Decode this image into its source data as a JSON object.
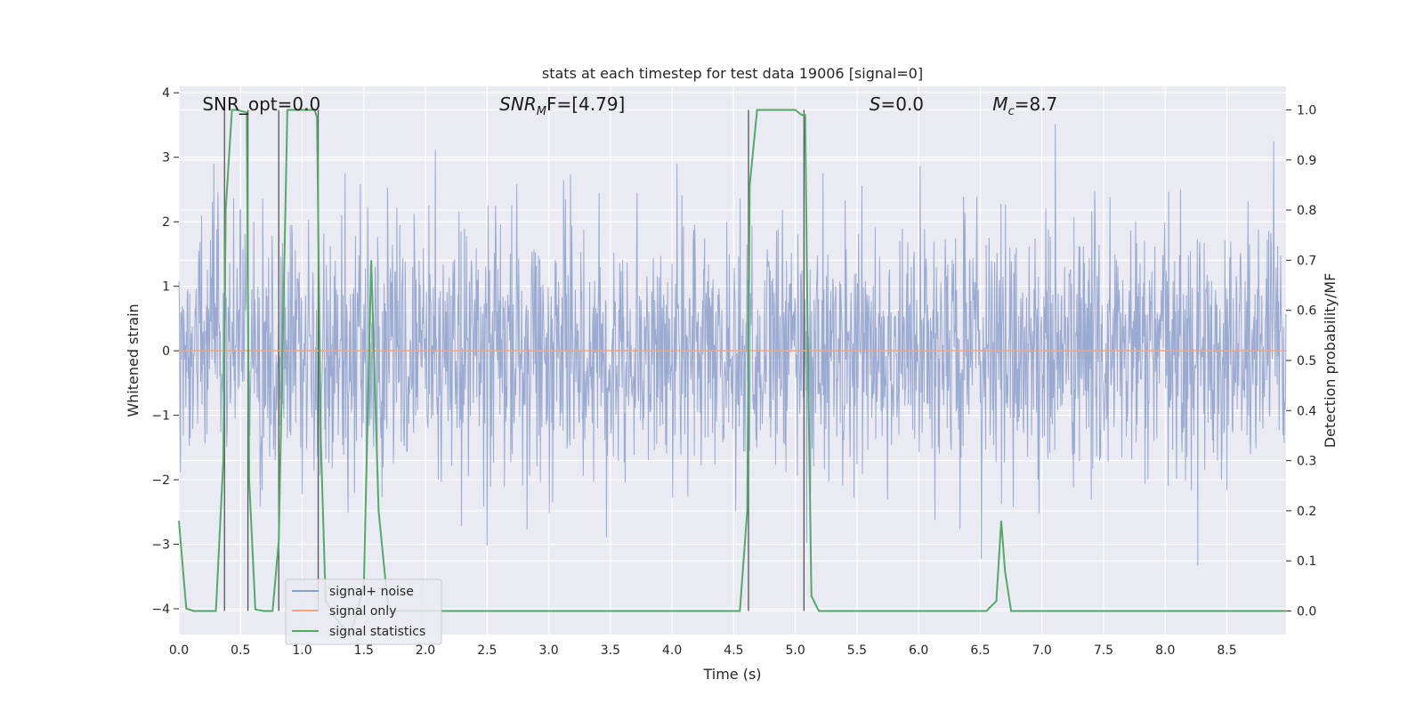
{
  "chart_data": {
    "type": "line",
    "title": "stats at each timestep for test data 19006 [signal=0]",
    "xlabel": "Time (s)",
    "ylabel_left": "Whitened strain",
    "ylabel_right": "Detection probability/MF",
    "xlim": [
      0.0,
      8.98
    ],
    "ylim_left": [
      -4.4,
      4.1
    ],
    "ylim_right": [
      -0.047,
      1.047
    ],
    "x_ticks": [
      "0.0",
      "0.5",
      "1.0",
      "1.5",
      "2.0",
      "2.5",
      "3.0",
      "3.5",
      "4.0",
      "4.5",
      "5.0",
      "5.5",
      "6.0",
      "6.5",
      "7.0",
      "7.5",
      "8.0",
      "8.5"
    ],
    "y_ticks_left": [
      "−4",
      "−3",
      "−2",
      "−1",
      "0",
      "1",
      "2",
      "3",
      "4"
    ],
    "y_ticks_right": [
      "0.0",
      "0.1",
      "0.2",
      "0.3",
      "0.4",
      "0.5",
      "0.6",
      "0.7",
      "0.8",
      "0.9",
      "1.0"
    ],
    "grid": true,
    "legend_placement": "lower-left",
    "legend": [
      {
        "label": "signal+ noise",
        "color": "#8c9fca"
      },
      {
        "label": "signal only",
        "color": "#dd8452"
      },
      {
        "label": "signal statistics",
        "color": "#55a868"
      }
    ],
    "annotations": [
      {
        "text": "SNR_opt=0.0",
        "x": 0.19
      },
      {
        "text": "SNR",
        "sub": "M",
        "rest": "F=[4.79]",
        "x": 2.6
      },
      {
        "text": "S",
        "rest": "=0.0",
        "x": 5.6
      },
      {
        "text": "M",
        "sub": "c",
        "rest": "=8.7",
        "x": 6.6
      }
    ],
    "series": [
      {
        "name": "signal only",
        "axis": "left",
        "x": [
          0.0,
          8.98
        ],
        "y": [
          0.0,
          0.0
        ]
      },
      {
        "name": "signal statistics",
        "axis": "right",
        "x": [
          0.0,
          0.06,
          0.12,
          0.3,
          0.36,
          0.38,
          0.43,
          0.47,
          0.55,
          0.57,
          0.62,
          0.69,
          0.76,
          0.81,
          0.88,
          1.1,
          1.12,
          1.15,
          1.19,
          1.26,
          1.39,
          1.5,
          1.56,
          1.62,
          1.7,
          2.5,
          3.0,
          4.0,
          4.55,
          4.61,
          4.63,
          4.69,
          5.0,
          5.05,
          5.08,
          5.1,
          5.13,
          5.19,
          5.3,
          6.0,
          6.55,
          6.63,
          6.67,
          6.7,
          6.75,
          7.0,
          8.0,
          8.98
        ],
        "y": [
          0.18,
          0.005,
          0.0,
          0.0,
          0.3,
          0.8,
          1.0,
          1.0,
          0.995,
          0.26,
          0.003,
          0.0,
          0.0,
          0.14,
          1.0,
          1.0,
          0.985,
          0.35,
          0.02,
          -0.01,
          -0.05,
          0.05,
          0.7,
          0.2,
          0.0,
          0.0,
          0.0,
          0.0,
          0.0,
          0.2,
          0.85,
          1.0,
          1.0,
          0.99,
          0.99,
          0.55,
          0.03,
          0.0,
          0.0,
          0.0,
          0.0,
          0.02,
          0.18,
          0.08,
          0.0,
          0.0,
          0.0,
          0.0
        ]
      }
    ],
    "noise_series": {
      "name": "signal+ noise",
      "axis": "left",
      "sample_step": 0.004,
      "amplitude_std": 1.0,
      "seed": 19006
    },
    "vertical_markers": [
      0.37,
      0.56,
      0.81,
      1.13,
      4.62,
      5.07
    ]
  }
}
